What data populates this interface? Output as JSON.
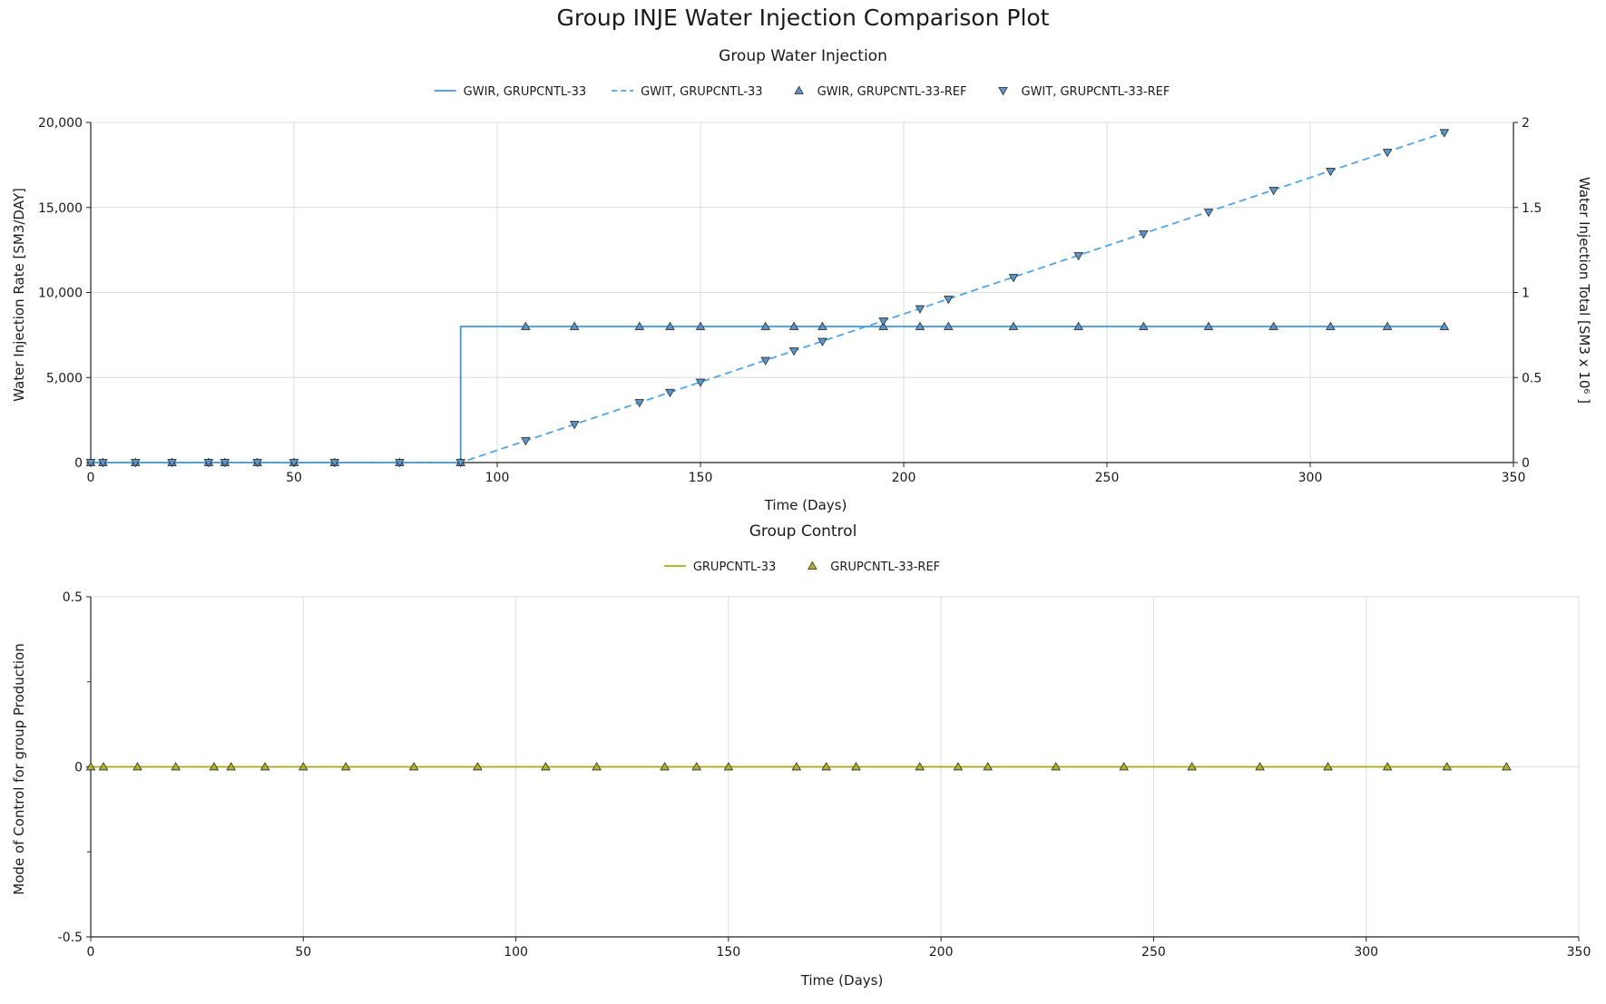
{
  "page_title": "Group INJE Water Injection Comparison Plot",
  "chart_data": [
    {
      "type": "line",
      "title": "Group Water Injection",
      "xlabel": "Time (Days)",
      "ylabel": "Water Injection Rate [SM3/DAY]",
      "y2label": "Water Injection Total [SM3 x 10⁶ ]",
      "xlim": [
        0,
        350
      ],
      "ylim": [
        0,
        20000
      ],
      "y2lim": [
        0,
        2
      ],
      "xticks": [
        "0",
        "50",
        "100",
        "150",
        "200",
        "250",
        "300",
        "350"
      ],
      "yticks": [
        "0",
        "5,000",
        "10,000",
        "15,000",
        "20,000"
      ],
      "y2ticks": [
        "0",
        "0.5",
        "1",
        "1.5",
        "2"
      ],
      "grid": true,
      "legend_position": "top-center",
      "series": [
        {
          "name": "GWIR, GRUPCNTL-33",
          "axis": "left",
          "style": "solid",
          "color": "#3f97e2",
          "x": [
            0,
            91,
            91,
            333
          ],
          "y": [
            0,
            0,
            8000,
            8000
          ]
        },
        {
          "name": "GWIT, GRUPCNTL-33",
          "axis": "right",
          "style": "dashed",
          "color": "#4ea4ec",
          "x": [
            0,
            91,
            333
          ],
          "y": [
            0,
            0,
            1.94
          ]
        },
        {
          "name": "GWIR, GRUPCNTL-33-REF",
          "axis": "left",
          "style": "marker-triangle-up",
          "color": "#5b95c9",
          "x": [
            0,
            3,
            11,
            20,
            29,
            33,
            41,
            50,
            60,
            76,
            91,
            107,
            119,
            135,
            142.5,
            150,
            166,
            173,
            180,
            195,
            204,
            211,
            227,
            243,
            259,
            275,
            291,
            305,
            319,
            333
          ],
          "y": [
            0,
            0,
            0,
            0,
            0,
            0,
            0,
            0,
            0,
            0,
            0,
            8000,
            8000,
            8000,
            8000,
            8000,
            8000,
            8000,
            8000,
            8000,
            8000,
            8000,
            8000,
            8000,
            8000,
            8000,
            8000,
            8000,
            8000,
            8000
          ]
        },
        {
          "name": "GWIT, GRUPCNTL-33-REF",
          "axis": "right",
          "style": "marker-triangle-down",
          "color": "#5b95c9",
          "x": [
            0,
            3,
            11,
            20,
            29,
            33,
            41,
            50,
            60,
            76,
            91,
            107,
            119,
            135,
            142.5,
            150,
            166,
            173,
            180,
            195,
            204,
            211,
            227,
            243,
            259,
            275,
            291,
            305,
            319,
            333
          ],
          "y": [
            0,
            0,
            0,
            0,
            0,
            0,
            0,
            0,
            0,
            0,
            0,
            0.128,
            0.224,
            0.352,
            0.412,
            0.472,
            0.6,
            0.656,
            0.712,
            0.832,
            0.904,
            0.96,
            1.088,
            1.216,
            1.344,
            1.472,
            1.6,
            1.712,
            1.824,
            1.94
          ]
        }
      ]
    },
    {
      "type": "line",
      "title": "Group Control",
      "xlabel": "Time (Days)",
      "ylabel": "Mode of Control for group Production",
      "xlim": [
        0,
        350
      ],
      "ylim": [
        -0.5,
        0.5
      ],
      "xticks": [
        "0",
        "50",
        "100",
        "150",
        "200",
        "250",
        "300",
        "350"
      ],
      "yticks": [
        "-0.5",
        "0",
        "0.5"
      ],
      "grid": true,
      "legend_position": "top-center",
      "series": [
        {
          "name": "GRUPCNTL-33",
          "style": "solid",
          "color": "#a7a71a",
          "x": [
            0,
            333
          ],
          "y": [
            0,
            0
          ]
        },
        {
          "name": "GRUPCNTL-33-REF",
          "style": "marker-triangle-up",
          "color": "#b1b12a",
          "x": [
            0,
            3,
            11,
            20,
            29,
            33,
            41,
            50,
            60,
            76,
            91,
            107,
            119,
            135,
            142.5,
            150,
            166,
            173,
            180,
            195,
            204,
            211,
            227,
            243,
            259,
            275,
            291,
            305,
            319,
            333
          ],
          "y": [
            0,
            0,
            0,
            0,
            0,
            0,
            0,
            0,
            0,
            0,
            0,
            0,
            0,
            0,
            0,
            0,
            0,
            0,
            0,
            0,
            0,
            0,
            0,
            0,
            0,
            0,
            0,
            0,
            0,
            0
          ]
        }
      ]
    }
  ]
}
